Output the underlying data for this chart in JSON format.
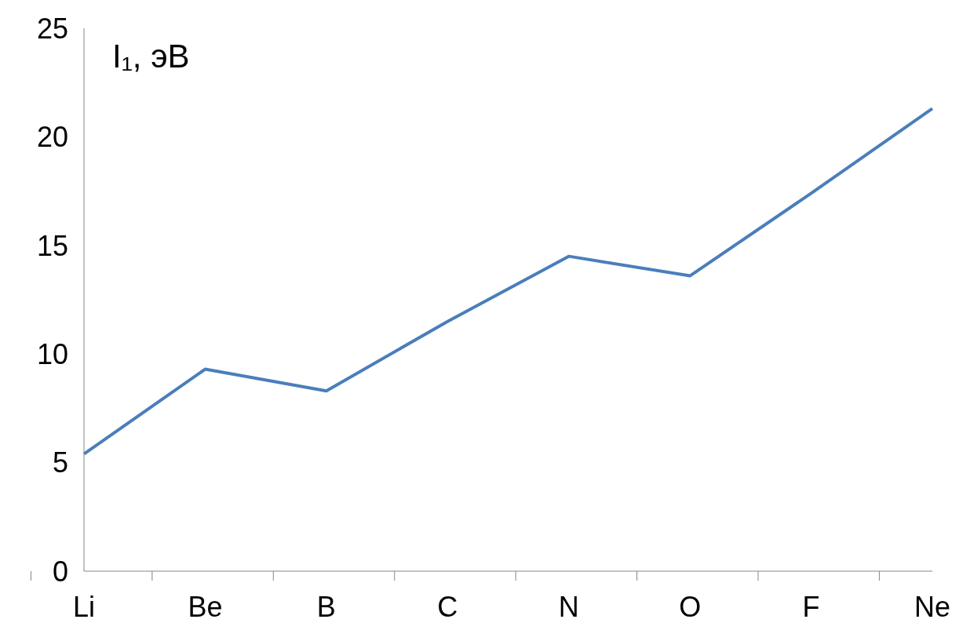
{
  "chart_data": {
    "type": "line",
    "ylabel": "I₁, эВ",
    "categories": [
      "Li",
      "Be",
      "B",
      "C",
      "N",
      "O",
      "F",
      "Ne"
    ],
    "series": [
      {
        "color": "#4a7ebb",
        "values": [
          5.4,
          9.3,
          8.3,
          11.5,
          14.5,
          13.6,
          17.4,
          21.3
        ]
      }
    ],
    "ylim": [
      0,
      25
    ],
    "yticks": [
      0,
      5,
      10,
      15,
      20,
      25
    ],
    "grid": false,
    "legend": false,
    "marker": "none",
    "line_style": "solid"
  }
}
